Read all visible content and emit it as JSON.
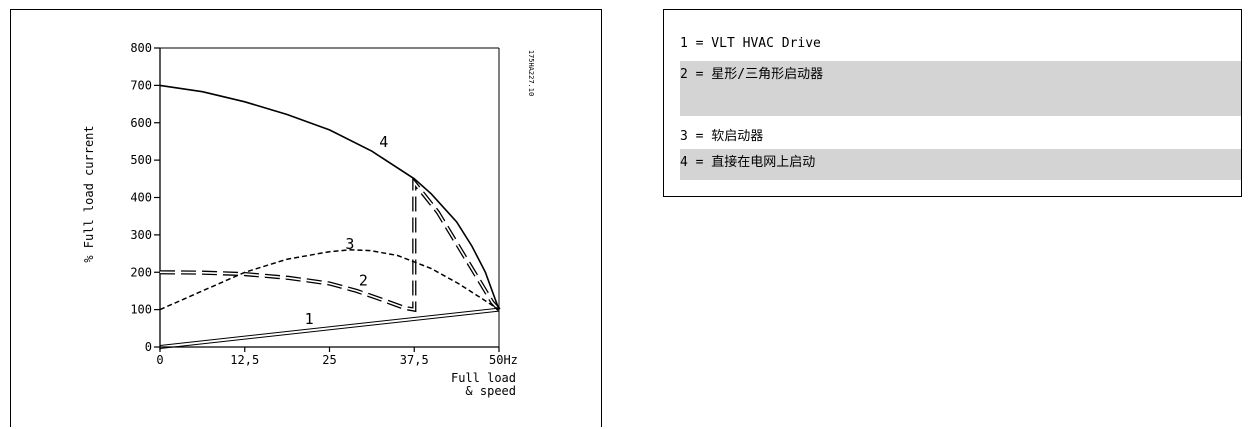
{
  "chart_data": {
    "type": "line",
    "xlabel": [
      "Full load",
      "& speed"
    ],
    "ylabel": "% Full load current",
    "x_ticks": [
      "0",
      "12,5",
      "25",
      "37,5",
      "50Hz"
    ],
    "x_tick_values": [
      0,
      12.5,
      25,
      37.5,
      50
    ],
    "y_ticks": [
      "0",
      "100",
      "200",
      "300",
      "400",
      "500",
      "600",
      "700",
      "800"
    ],
    "y_tick_values": [
      0,
      100,
      200,
      300,
      400,
      500,
      600,
      700,
      800
    ],
    "xlim": [
      0,
      50
    ],
    "ylim": [
      0,
      800
    ],
    "grid": false,
    "figure_id": "175HA227.10",
    "series": [
      {
        "name": "1",
        "style": "solid-double",
        "x": [
          0,
          50
        ],
        "y": [
          0,
          100
        ]
      },
      {
        "name": "2",
        "style": "long-dash",
        "x": [
          0,
          6,
          12.5,
          19,
          25,
          29,
          33,
          36,
          37.5,
          37.5,
          41,
          44,
          47,
          49,
          50
        ],
        "y": [
          200,
          199,
          195,
          185,
          170,
          150,
          125,
          105,
          100,
          440,
          360,
          270,
          180,
          120,
          100
        ]
      },
      {
        "name": "3",
        "style": "short-dash",
        "x": [
          0,
          6.25,
          12.5,
          18.75,
          25,
          28,
          31,
          35,
          40,
          44,
          47,
          50
        ],
        "y": [
          100,
          150,
          200,
          235,
          255,
          260,
          258,
          245,
          210,
          170,
          135,
          100
        ]
      },
      {
        "name": "4",
        "style": "solid",
        "x": [
          0,
          6.25,
          12.5,
          18.75,
          25,
          31.25,
          37.5,
          40,
          43.75,
          46,
          48,
          50
        ],
        "y": [
          700,
          683,
          656,
          622,
          581,
          524,
          450,
          410,
          335,
          270,
          200,
          100
        ]
      }
    ]
  },
  "legend": {
    "items": [
      {
        "label": "1 = VLT HVAC Drive"
      },
      {
        "label": "2 = 星形/三角形启动器"
      },
      {
        "label": "3 = 软启动器"
      },
      {
        "label": "4 = 直接在电网上启动"
      }
    ]
  }
}
